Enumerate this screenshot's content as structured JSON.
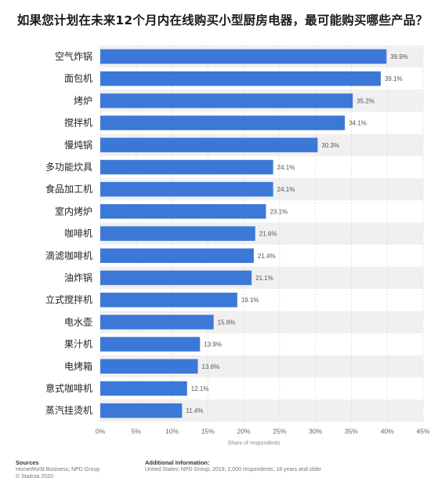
{
  "title": "如果您计划在未来12个月内在线购买小型厨房电器，最可能购买哪些产品？",
  "chart_data": {
    "type": "bar",
    "orientation": "horizontal",
    "categories": [
      "空气炸锅",
      "面包机",
      "烤炉",
      "搅拌机",
      "慢炖锅",
      "多功能炊具",
      "食品加工机",
      "室内烤炉",
      "咖啡机",
      "滴滤咖啡机",
      "油炸锅",
      "立式搅拌机",
      "电水壶",
      "果汁机",
      "电烤箱",
      "意式咖啡机",
      "蒸汽挂烫机"
    ],
    "values": [
      39.9,
      39.1,
      35.2,
      34.1,
      30.3,
      24.1,
      24.1,
      23.1,
      21.6,
      21.4,
      21.1,
      19.1,
      15.8,
      13.9,
      13.6,
      12.1,
      11.4
    ],
    "value_labels": [
      "39.9%",
      "39.1%",
      "35.2%",
      "34.1%",
      "30.3%",
      "24.1%",
      "24.1%",
      "23.1%",
      "21.6%",
      "21.4%",
      "21.1%",
      "19.1%",
      "15.8%",
      "13.9%",
      "13.6%",
      "12.1%",
      "11.4%"
    ],
    "x_ticks": [
      "0%",
      "5%",
      "10%",
      "15%",
      "20%",
      "25%",
      "30%",
      "35%",
      "40%",
      "45%"
    ],
    "xlim": [
      0,
      45
    ],
    "xlabel": "Share of respondents",
    "grid": true,
    "bar_color": "#3c78d8",
    "band_color": "#f0f0f0"
  },
  "footer": {
    "sources_heading": "Sources",
    "sources_line1": "HomeWorld Business; NPD Group",
    "sources_line2": "© Statista 2020",
    "info_heading": "Additional Information:",
    "info_line1": "United States; NPD Group; 2019; 2,000 respondents; 18 years and older"
  }
}
